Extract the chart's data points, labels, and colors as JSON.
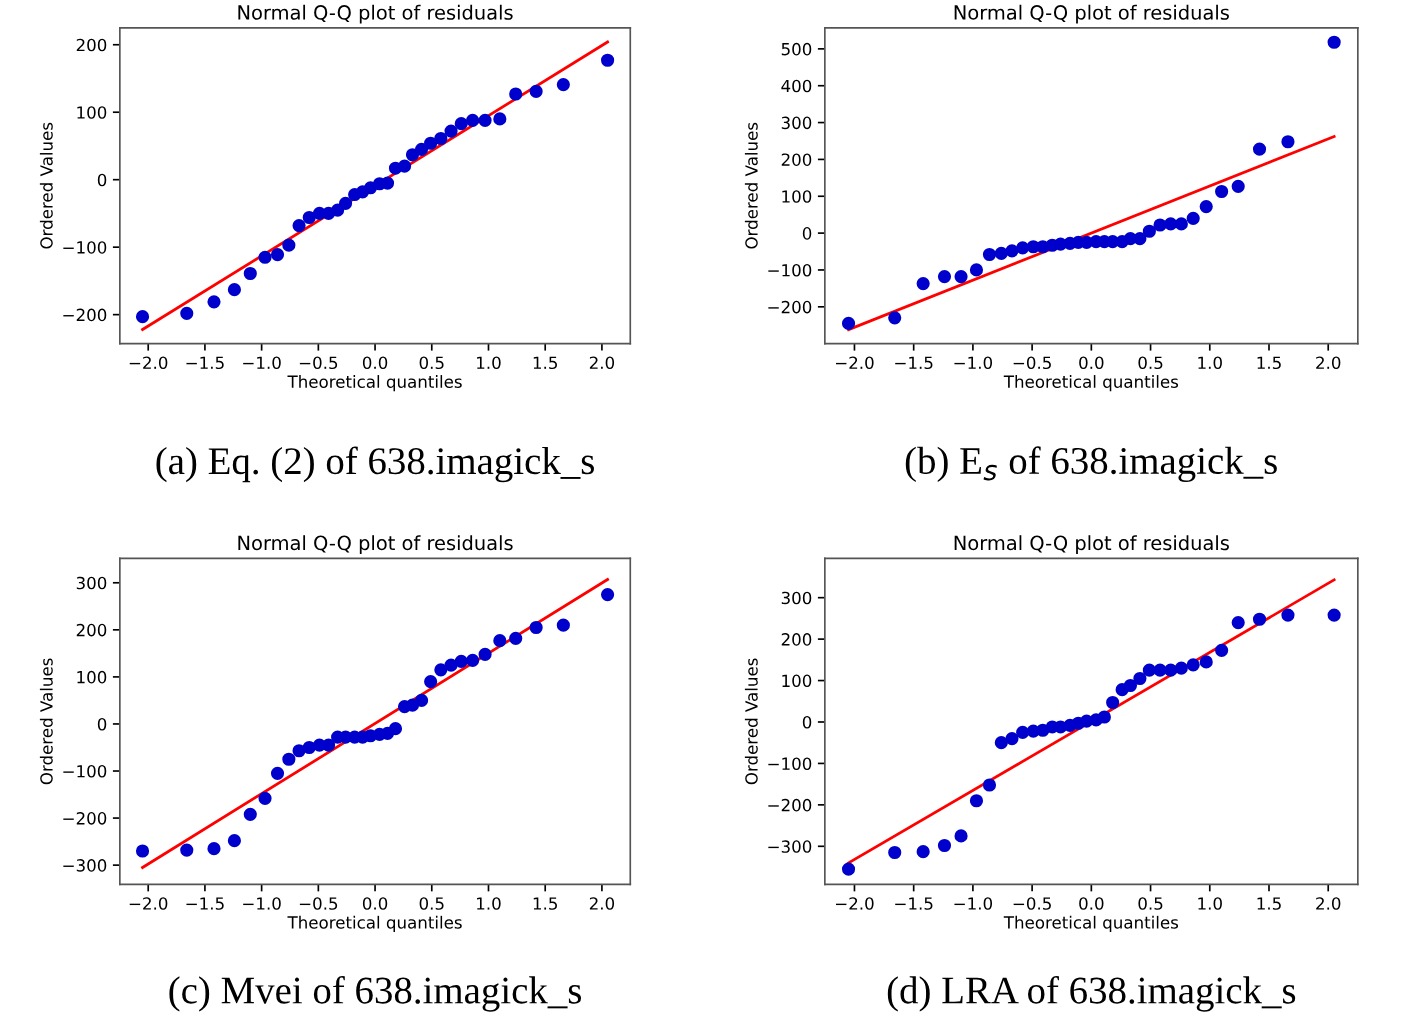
{
  "chart_data": [
    {
      "type": "scatter",
      "title": "Normal Q-Q plot of residuals",
      "xlabel": "Theoretical quantiles",
      "ylabel": "Ordered Values",
      "annotations": [
        "(a) Eq. (2) of 638.imagick_s"
      ],
      "xlim": [
        -2.25,
        2.25
      ],
      "ylim": [
        -243,
        225
      ],
      "xticks": [
        {
          "value": -2.0,
          "label": "−2.0"
        },
        {
          "value": -1.5,
          "label": "−1.5"
        },
        {
          "value": -1.0,
          "label": "−1.0"
        },
        {
          "value": -0.5,
          "label": "−0.5"
        },
        {
          "value": 0.0,
          "label": "0.0"
        },
        {
          "value": 0.5,
          "label": "0.5"
        },
        {
          "value": 1.0,
          "label": "1.0"
        },
        {
          "value": 1.5,
          "label": "1.5"
        },
        {
          "value": 2.0,
          "label": "2.0"
        }
      ],
      "yticks": [
        {
          "value": -200,
          "label": "−200"
        },
        {
          "value": -100,
          "label": "−100"
        },
        0,
        100,
        200
      ],
      "series": [
        {
          "color": "#0000cc",
          "marker": "circle",
          "x": [
            -2.05,
            -1.66,
            -1.42,
            -1.24,
            -1.1,
            -0.97,
            -0.86,
            -0.76,
            -0.67,
            -0.58,
            -0.49,
            -0.41,
            -0.33,
            -0.26,
            -0.18,
            -0.11,
            -0.04,
            0.04,
            0.11,
            0.18,
            0.26,
            0.33,
            0.41,
            0.49,
            0.58,
            0.67,
            0.76,
            0.86,
            0.97,
            1.1,
            1.24,
            1.42,
            1.66,
            2.05
          ],
          "values": [
            -203,
            -198,
            -181,
            -163,
            -139,
            -115,
            -111,
            -97,
            -68,
            -56,
            -50,
            -50,
            -45,
            -35,
            -22,
            -18,
            -12,
            -6,
            -5,
            17,
            20,
            37,
            45,
            54,
            61,
            72,
            83,
            88,
            88,
            90,
            127,
            131,
            141,
            177
          ]
        },
        {
          "type": "line",
          "color": "#ff0000",
          "x": [
            -2.05,
            2.05
          ],
          "values": [
            -222,
            204
          ]
        }
      ]
    },
    {
      "type": "scatter",
      "title": "Normal Q-Q plot of residuals",
      "xlabel": "Theoretical quantiles",
      "ylabel": "Ordered Values",
      "annotations": [
        "(b) E$_{s}$ of 638.imagick_s"
      ],
      "xlim": [
        -2.25,
        2.25
      ],
      "ylim": [
        -300,
        557
      ],
      "xticks": [
        {
          "value": -2.0,
          "label": "−2.0"
        },
        {
          "value": -1.5,
          "label": "−1.5"
        },
        {
          "value": -1.0,
          "label": "−1.0"
        },
        {
          "value": -0.5,
          "label": "−0.5"
        },
        {
          "value": 0.0,
          "label": "0.0"
        },
        {
          "value": 0.5,
          "label": "0.5"
        },
        {
          "value": 1.0,
          "label": "1.0"
        },
        {
          "value": 1.5,
          "label": "1.5"
        },
        {
          "value": 2.0,
          "label": "2.0"
        }
      ],
      "yticks": [
        {
          "value": -200,
          "label": "−200"
        },
        {
          "value": -100,
          "label": "−100"
        },
        0,
        100,
        200,
        300,
        400,
        500
      ],
      "series": [
        {
          "color": "#0000cc",
          "marker": "circle",
          "x": [
            -2.05,
            -1.66,
            -1.42,
            -1.24,
            -1.1,
            -0.97,
            -0.86,
            -0.76,
            -0.67,
            -0.58,
            -0.49,
            -0.41,
            -0.33,
            -0.26,
            -0.18,
            -0.11,
            -0.04,
            0.04,
            0.11,
            0.18,
            0.26,
            0.33,
            0.41,
            0.49,
            0.58,
            0.67,
            0.76,
            0.86,
            0.97,
            1.1,
            1.24,
            1.42,
            1.66,
            2.05
          ],
          "values": [
            -245,
            -230,
            -137,
            -118,
            -118,
            -100,
            -58,
            -55,
            -48,
            -40,
            -37,
            -37,
            -33,
            -30,
            -28,
            -25,
            -25,
            -23,
            -23,
            -23,
            -23,
            -15,
            -15,
            5,
            22,
            25,
            25,
            40,
            72,
            113,
            127,
            228,
            248,
            518
          ]
        },
        {
          "type": "line",
          "color": "#ff0000",
          "x": [
            -2.05,
            2.05
          ],
          "values": [
            -262,
            262
          ]
        }
      ]
    },
    {
      "type": "scatter",
      "title": "Normal Q-Q plot of residuals",
      "xlabel": "Theoretical quantiles",
      "ylabel": "Ordered Values",
      "annotations": [
        "(c) Mvei of 638.imagick_s"
      ],
      "xlim": [
        -2.25,
        2.25
      ],
      "ylim": [
        -341,
        352
      ],
      "xticks": [
        {
          "value": -2.0,
          "label": "−2.0"
        },
        {
          "value": -1.5,
          "label": "−1.5"
        },
        {
          "value": -1.0,
          "label": "−1.0"
        },
        {
          "value": -0.5,
          "label": "−0.5"
        },
        {
          "value": 0.0,
          "label": "0.0"
        },
        {
          "value": 0.5,
          "label": "0.5"
        },
        {
          "value": 1.0,
          "label": "1.0"
        },
        {
          "value": 1.5,
          "label": "1.5"
        },
        {
          "value": 2.0,
          "label": "2.0"
        }
      ],
      "yticks": [
        {
          "value": -300,
          "label": "−300"
        },
        {
          "value": -200,
          "label": "−200"
        },
        {
          "value": -100,
          "label": "−100"
        },
        0,
        100,
        200,
        300
      ],
      "series": [
        {
          "color": "#0000cc",
          "marker": "circle",
          "x": [
            -2.05,
            -1.66,
            -1.42,
            -1.24,
            -1.1,
            -0.97,
            -0.86,
            -0.76,
            -0.67,
            -0.58,
            -0.49,
            -0.41,
            -0.33,
            -0.26,
            -0.18,
            -0.11,
            -0.04,
            0.04,
            0.11,
            0.18,
            0.26,
            0.33,
            0.41,
            0.49,
            0.58,
            0.67,
            0.76,
            0.86,
            0.97,
            1.1,
            1.24,
            1.42,
            1.66,
            2.05
          ],
          "values": [
            -270,
            -268,
            -265,
            -248,
            -192,
            -158,
            -105,
            -75,
            -57,
            -50,
            -45,
            -45,
            -28,
            -28,
            -28,
            -28,
            -25,
            -22,
            -20,
            -10,
            37,
            40,
            50,
            90,
            115,
            125,
            133,
            135,
            148,
            177,
            182,
            205,
            210,
            275
          ]
        },
        {
          "type": "line",
          "color": "#ff0000",
          "x": [
            -2.05,
            2.05
          ],
          "values": [
            -305,
            307
          ]
        }
      ]
    },
    {
      "type": "scatter",
      "title": "Normal Q-Q plot of residuals",
      "xlabel": "Theoretical quantiles",
      "ylabel": "Ordered Values",
      "annotations": [
        "(d) LRA of 638.imagick_s"
      ],
      "xlim": [
        -2.25,
        2.25
      ],
      "ylim": [
        -392,
        395
      ],
      "xticks": [
        {
          "value": -2.0,
          "label": "−2.0"
        },
        {
          "value": -1.5,
          "label": "−1.5"
        },
        {
          "value": -1.0,
          "label": "−1.0"
        },
        {
          "value": -0.5,
          "label": "−0.5"
        },
        {
          "value": 0.0,
          "label": "0.0"
        },
        {
          "value": 0.5,
          "label": "0.5"
        },
        {
          "value": 1.0,
          "label": "1.0"
        },
        {
          "value": 1.5,
          "label": "1.5"
        },
        {
          "value": 2.0,
          "label": "2.0"
        }
      ],
      "yticks": [
        {
          "value": -300,
          "label": "−300"
        },
        {
          "value": -200,
          "label": "−200"
        },
        {
          "value": -100,
          "label": "−100"
        },
        0,
        100,
        200,
        300
      ],
      "series": [
        {
          "color": "#0000cc",
          "marker": "circle",
          "x": [
            -2.05,
            -1.66,
            -1.42,
            -1.24,
            -1.1,
            -0.97,
            -0.86,
            -0.76,
            -0.67,
            -0.58,
            -0.49,
            -0.41,
            -0.33,
            -0.26,
            -0.18,
            -0.11,
            -0.04,
            0.04,
            0.11,
            0.18,
            0.26,
            0.33,
            0.41,
            0.49,
            0.58,
            0.67,
            0.76,
            0.86,
            0.97,
            1.1,
            1.24,
            1.42,
            1.66,
            2.05
          ],
          "values": [
            -355,
            -315,
            -313,
            -298,
            -275,
            -190,
            -152,
            -50,
            -40,
            -25,
            -22,
            -20,
            -12,
            -12,
            -8,
            -3,
            2,
            5,
            12,
            47,
            78,
            88,
            105,
            125,
            125,
            125,
            130,
            138,
            145,
            173,
            240,
            248,
            258,
            258
          ]
        },
        {
          "type": "line",
          "color": "#ff0000",
          "x": [
            -2.05,
            2.05
          ],
          "values": [
            -340,
            343
          ]
        }
      ]
    }
  ]
}
